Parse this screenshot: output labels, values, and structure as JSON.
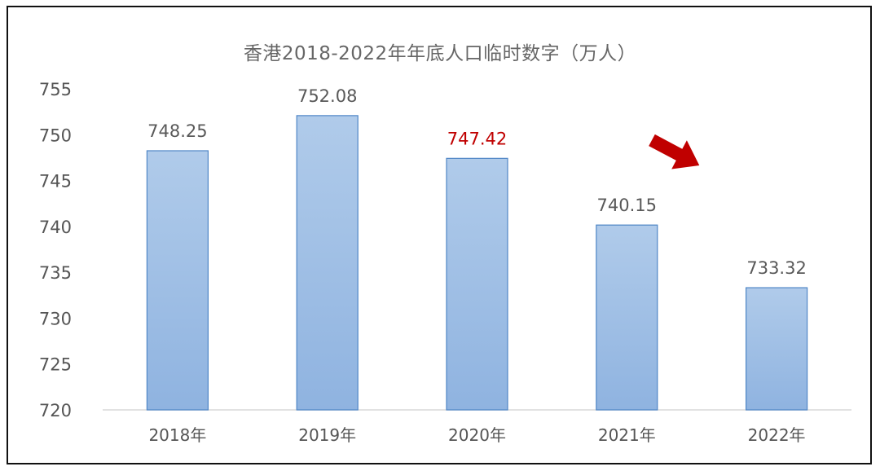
{
  "chart_data": {
    "type": "bar",
    "title": "香港2018-2022年年底人口临时数字（万人）",
    "categories": [
      "2018年",
      "2019年",
      "2020年",
      "2021年",
      "2022年"
    ],
    "values": [
      748.25,
      752.08,
      747.42,
      740.15,
      733.32
    ],
    "data_labels": [
      "748.25",
      "752.08",
      "747.42",
      "740.15",
      "733.32"
    ],
    "highlight": {
      "index": 2,
      "color": "#c00000"
    },
    "ylim": [
      720,
      755
    ],
    "yticks": [
      720,
      725,
      730,
      735,
      740,
      745,
      750,
      755
    ],
    "xlabel": "",
    "ylabel": "",
    "grid": false,
    "legend": "none",
    "annotations": [
      {
        "type": "arrow",
        "direction": "down-right",
        "color": "#c00000"
      }
    ]
  },
  "colors": {
    "bar_top": "#b0cbea",
    "bar_bottom": "#8fb3e0",
    "bar_border": "#4f86c6",
    "label_text": "#595959",
    "axis_text": "#555555",
    "title_text": "#666666",
    "axis_line": "#d9d9d9",
    "arrow": "#c00000"
  }
}
